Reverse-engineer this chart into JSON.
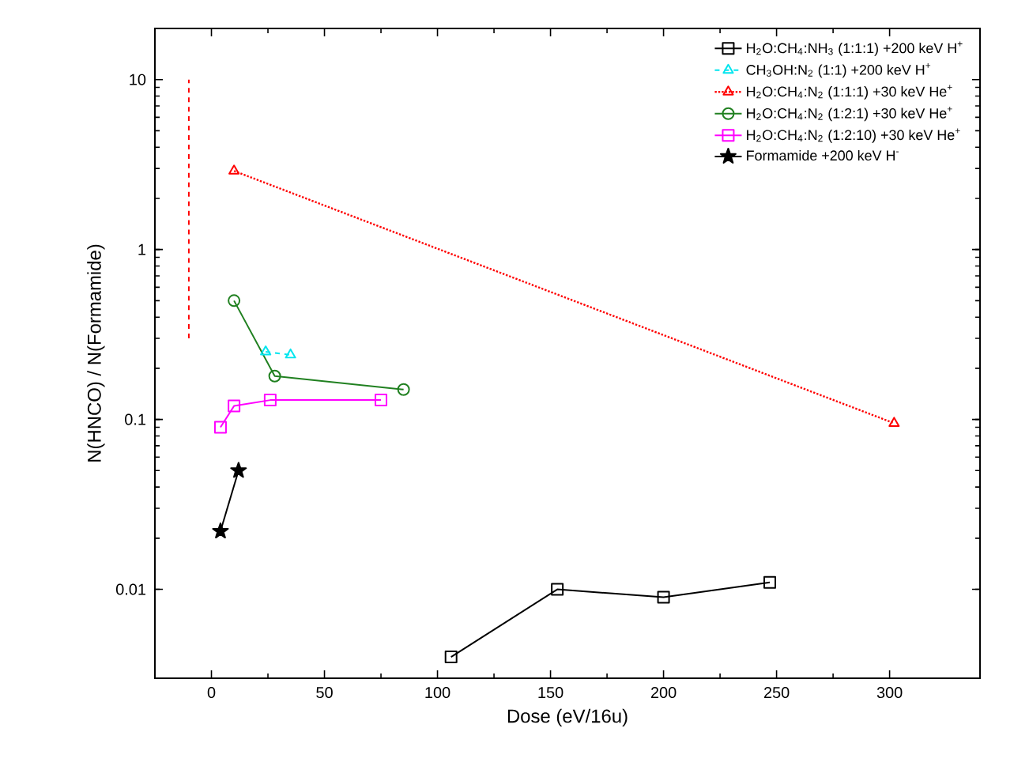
{
  "chart_data": {
    "type": "line",
    "xlabel": "Dose (eV/16u)",
    "ylabel": "N(HNCO) / N(Formamide)",
    "log": true,
    "xlim": [
      -25,
      340
    ],
    "ylim": [
      0.003,
      20
    ],
    "xticks": [
      0,
      50,
      100,
      150,
      200,
      250,
      300
    ],
    "yticks": [
      0.01,
      0.1,
      1,
      10
    ],
    "legend": "top right",
    "series": [
      {
        "name": "H$_{2}$O:CH$_{4}$:NH$_{3}$ (1:1:1) +200 keV H$^{+}$",
        "color": "#000000",
        "marker": "square",
        "line_style": "solid",
        "x": [
          106,
          153,
          200,
          247
        ],
        "values": [
          0.004,
          0.01,
          0.009,
          0.011
        ]
      },
      {
        "name": "CH$_{3}$OH:N$_{2}$ (1:1) +200 keV H$^{+}$",
        "color": "#00e5ee",
        "marker": "triangle",
        "line_style": "dashed",
        "x": [
          24,
          35
        ],
        "values": [
          0.25,
          0.24
        ]
      },
      {
        "name": "H$_{2}$O:CH$_{4}$:N$_{2}$ (1:1:1) +30 keV He$^{+}$",
        "color": "#ff0000",
        "marker": "triangle",
        "line_style": "dotted",
        "x": [
          10,
          302
        ],
        "values": [
          2.9,
          0.095
        ]
      },
      {
        "name": "H$_{2}$O:CH$_{4}$:N$_{2}$ (1:2:1) +30 keV He$^{+}$",
        "color": "#208020",
        "marker": "circle",
        "line_style": "solid",
        "x": [
          10,
          28,
          85
        ],
        "values": [
          0.5,
          0.18,
          0.15
        ]
      },
      {
        "name": "H$_{2}$O:CH$_{4}$:N$_{2}$ (1:2:10) +30 keV He$^{+}$",
        "color": "#ff00ff",
        "marker": "square",
        "line_style": "solid",
        "x": [
          4,
          10,
          26,
          75
        ],
        "values": [
          0.09,
          0.12,
          0.13,
          0.13
        ]
      },
      {
        "name": "Formamide +200 keV H$^{-}$",
        "color": "#000000",
        "marker": "star",
        "line_style": "solid",
        "x": [
          4,
          12
        ],
        "values": [
          0.022,
          0.05
        ]
      },
      {
        "color": "#ff0000",
        "marker": "none",
        "line_style": "dashed",
        "x": [
          -10,
          -10
        ],
        "values": [
          0.3,
          10
        ]
      }
    ]
  }
}
